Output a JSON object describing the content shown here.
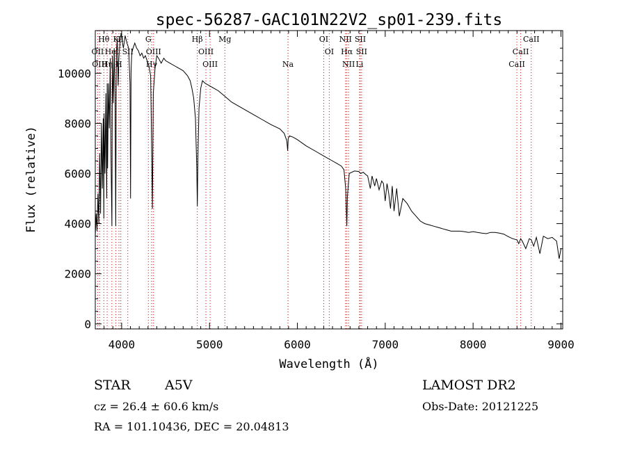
{
  "chart_data": {
    "type": "line",
    "title": "spec-56287-GAC101N22V2_sp01-239.fits",
    "xlabel": "Wavelength (Å)",
    "ylabel": "Flux (relative)",
    "xlim": [
      3700,
      9020
    ],
    "ylim": [
      -200,
      11700
    ],
    "xticks": [
      4000,
      5000,
      6000,
      7000,
      8000,
      9000
    ],
    "yticks": [
      0,
      2000,
      4000,
      6000,
      8000,
      10000
    ],
    "line_color": "#000000",
    "marker_color": "#cc0000",
    "grid": false,
    "series": [
      {
        "x": [
          3700,
          3710,
          3720,
          3730,
          3740,
          3750,
          3760,
          3770,
          3780,
          3790,
          3797,
          3800,
          3810,
          3820,
          3830,
          3835,
          3840,
          3850,
          3860,
          3870,
          3880,
          3889,
          3895,
          3905,
          3915,
          3925,
          3933,
          3940,
          3950,
          3960,
          3968,
          3975,
          3985,
          3995,
          4005,
          4020,
          4040,
          4060,
          4080,
          4095,
          4101,
          4107,
          4115,
          4130,
          4150,
          4170,
          4190,
          4210,
          4230,
          4250,
          4270,
          4290,
          4310,
          4330,
          4340,
          4350,
          4360,
          4380,
          4400,
          4420,
          4450,
          4480,
          4500,
          4550,
          4600,
          4650,
          4700,
          4750,
          4780,
          4800,
          4820,
          4840,
          4855,
          4861,
          4868,
          4880,
          4900,
          4920,
          4950,
          5000,
          5050,
          5100,
          5150,
          5200,
          5250,
          5300,
          5400,
          5500,
          5600,
          5700,
          5800,
          5850,
          5880,
          5890,
          5896,
          5910,
          5950,
          6000,
          6100,
          6200,
          6300,
          6400,
          6450,
          6500,
          6530,
          6550,
          6563,
          6570,
          6590,
          6620,
          6650,
          6700,
          6720,
          6750,
          6780,
          6800,
          6830,
          6850,
          6880,
          6900,
          6930,
          6960,
          6980,
          7000,
          7020,
          7040,
          7060,
          7080,
          7100,
          7130,
          7160,
          7200,
          7250,
          7300,
          7350,
          7400,
          7450,
          7500,
          7550,
          7600,
          7650,
          7700,
          7750,
          7800,
          7850,
          7900,
          7950,
          8000,
          8050,
          8100,
          8150,
          8200,
          8250,
          8300,
          8350,
          8400,
          8450,
          8500,
          8520,
          8542,
          8560,
          8600,
          8640,
          8662,
          8690,
          8720,
          8760,
          8800,
          8850,
          8900,
          8950,
          8980,
          9000
        ],
        "y": [
          3500,
          4400,
          3700,
          5200,
          4000,
          6800,
          4400,
          8000,
          5400,
          8200,
          4200,
          8400,
          6000,
          9200,
          5000,
          9600,
          6200,
          9600,
          7800,
          10600,
          6500,
          3900,
          10700,
          8800,
          11000,
          9000,
          3900,
          10800,
          11400,
          9500,
          10600,
          10900,
          11400,
          11600,
          11300,
          11000,
          11500,
          11200,
          11000,
          9600,
          5000,
          10000,
          10800,
          11000,
          11200,
          11000,
          10900,
          10700,
          10800,
          10600,
          10700,
          10500,
          10300,
          9900,
          7500,
          4600,
          9200,
          10200,
          10700,
          10600,
          10400,
          10600,
          10500,
          10400,
          10300,
          10200,
          10100,
          9900,
          9700,
          9400,
          9000,
          8200,
          6200,
          4700,
          6600,
          8600,
          9400,
          9700,
          9600,
          9500,
          9400,
          9300,
          9150,
          9000,
          8850,
          8750,
          8550,
          8350,
          8150,
          7950,
          7780,
          7600,
          7300,
          6900,
          7400,
          7500,
          7450,
          7350,
          7100,
          6900,
          6700,
          6500,
          6400,
          6300,
          6150,
          5400,
          3900,
          5100,
          6000,
          6050,
          6100,
          6080,
          6000,
          6050,
          5950,
          5900,
          5400,
          5900,
          5500,
          5800,
          5350,
          5700,
          5600,
          4900,
          5600,
          5200,
          4600,
          5500,
          4500,
          5400,
          4300,
          5000,
          4800,
          4500,
          4300,
          4100,
          4000,
          3950,
          3900,
          3850,
          3800,
          3750,
          3700,
          3700,
          3700,
          3680,
          3650,
          3680,
          3650,
          3620,
          3600,
          3650,
          3650,
          3620,
          3580,
          3480,
          3400,
          3350,
          3200,
          3400,
          3300,
          3000,
          3400,
          3350,
          3100,
          3450,
          2800,
          3500,
          3400,
          3450,
          3300,
          2600,
          3000
        ]
      }
    ],
    "lines": [
      {
        "label": "Hθ",
        "wl": 3797,
        "row": 1
      },
      {
        "label": "OII",
        "wl": 3727,
        "row": 2
      },
      {
        "label": "OIII",
        "wl": 3750,
        "row": 3
      },
      {
        "label": "K",
        "wl": 3934,
        "row": 1
      },
      {
        "label": "HeI",
        "wl": 3889,
        "row": 2
      },
      {
        "label": "Hη",
        "wl": 3835,
        "row": 3
      },
      {
        "label": "II",
        "wl": 3990,
        "row": 1
      },
      {
        "label": "SII",
        "wl": 4070,
        "row": 2
      },
      {
        "label": "H",
        "wl": 3969,
        "row": 3
      },
      {
        "label": "G",
        "wl": 4304,
        "row": 1
      },
      {
        "label": "OIII",
        "wl": 4363,
        "row": 2
      },
      {
        "label": "Hγ",
        "wl": 4341,
        "row": 3
      },
      {
        "label": "Hβ",
        "wl": 4861,
        "row": 1
      },
      {
        "label": "OIII",
        "wl": 4959,
        "row": 2
      },
      {
        "label": "OIII",
        "wl": 5007,
        "row": 3
      },
      {
        "label": "Mg",
        "wl": 5175,
        "row": 1
      },
      {
        "label": "Na",
        "wl": 5893,
        "row": 3
      },
      {
        "label": "OI",
        "wl": 6300,
        "row": 1
      },
      {
        "label": "OI",
        "wl": 6363,
        "row": 2
      },
      {
        "label": "NII",
        "wl": 6548,
        "row": 1
      },
      {
        "label": "NII",
        "wl": 6583,
        "row": 3
      },
      {
        "label": "Hα",
        "wl": 6563,
        "row": 2
      },
      {
        "label": "SII",
        "wl": 6716,
        "row": 1
      },
      {
        "label": "SII",
        "wl": 6731,
        "row": 2
      },
      {
        "label": "Li",
        "wl": 6708,
        "row": 3
      },
      {
        "label": "CaII",
        "wl": 8662,
        "row": 1
      },
      {
        "label": "CaII",
        "wl": 8542,
        "row": 2
      },
      {
        "label": "CaII",
        "wl": 8498,
        "row": 3
      }
    ]
  },
  "info": {
    "object_class": "STAR",
    "subclass": "A5V",
    "survey": "LAMOST DR2",
    "redshift": "cz = 26.4 ± 60.6 km/s",
    "obs_date": "Obs-Date: 20121225",
    "coords": "RA = 101.10436, DEC =  20.04813"
  }
}
